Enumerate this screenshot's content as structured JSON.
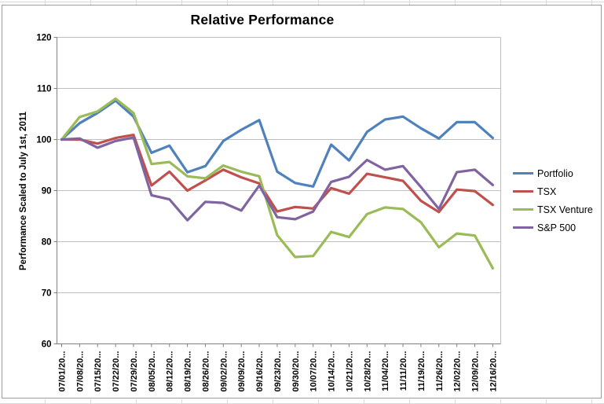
{
  "chart_data": {
    "type": "line",
    "title": "Relative Performance",
    "ylabel": "Performance Scaled to July 1st, 2011",
    "xlabel": "",
    "ylim": [
      60,
      120
    ],
    "ytick_step": 10,
    "grid": "horizontal",
    "legend_position": "right",
    "categories": [
      "07/01/20...",
      "07/08/20...",
      "07/15/20...",
      "07/22/20...",
      "07/29/20...",
      "08/05/20...",
      "08/12/20...",
      "08/19/20...",
      "08/26/20...",
      "09/02/20...",
      "09/09/20...",
      "09/16/20...",
      "09/23/20...",
      "09/30/20...",
      "10/07/20...",
      "10/14/20...",
      "10/21/20...",
      "10/28/20...",
      "11/04/20...",
      "11/11/20...",
      "11/19/20...",
      "11/26/20...",
      "12/02/20...",
      "12/09/20...",
      "12/16/20..."
    ],
    "series": [
      {
        "name": "Portfolio",
        "color": "#4F81BD",
        "values": [
          100,
          103.2,
          105.2,
          107.6,
          104.5,
          97.4,
          98.8,
          93.6,
          94.8,
          99.7,
          101.9,
          103.8,
          93.7,
          91.5,
          90.8,
          99,
          95.9,
          101.5,
          103.9,
          104.5,
          102.2,
          100.2,
          103.4,
          103.4,
          100.3
        ]
      },
      {
        "name": "TSX",
        "color": "#C0504D",
        "values": [
          100,
          100,
          99.2,
          100.3,
          100.9,
          91,
          93.7,
          90,
          92,
          94.1,
          92.6,
          91.4,
          85.9,
          86.8,
          86.5,
          90.5,
          89.4,
          93.3,
          92.6,
          91.9,
          88,
          85.8,
          90.2,
          89.9,
          87.2
        ]
      },
      {
        "name": "TSX Venture",
        "color": "#9BBB59",
        "values": [
          100,
          104.4,
          105.5,
          108,
          105.2,
          95.2,
          95.6,
          92.8,
          92.4,
          94.9,
          93.7,
          92.8,
          81.3,
          77,
          77.2,
          81.9,
          80.9,
          85.4,
          86.7,
          86.4,
          83.8,
          78.9,
          81.6,
          81.2,
          74.8
        ]
      },
      {
        "name": "S&P 500",
        "color": "#8064A2",
        "values": [
          100,
          100.2,
          98.4,
          99.7,
          100.4,
          89.1,
          88.3,
          84.2,
          87.8,
          87.6,
          86.1,
          91,
          84.8,
          84.4,
          85.9,
          91.7,
          92.7,
          96,
          94.1,
          94.8,
          90.7,
          86.4,
          93.6,
          94.1,
          91.1
        ]
      }
    ]
  },
  "colors": {
    "gridline": "#BFBFBF",
    "axis": "#808080",
    "chart_border": "#9C9C9C",
    "sheet_line": "#D9D9D9",
    "text": "#000000"
  }
}
